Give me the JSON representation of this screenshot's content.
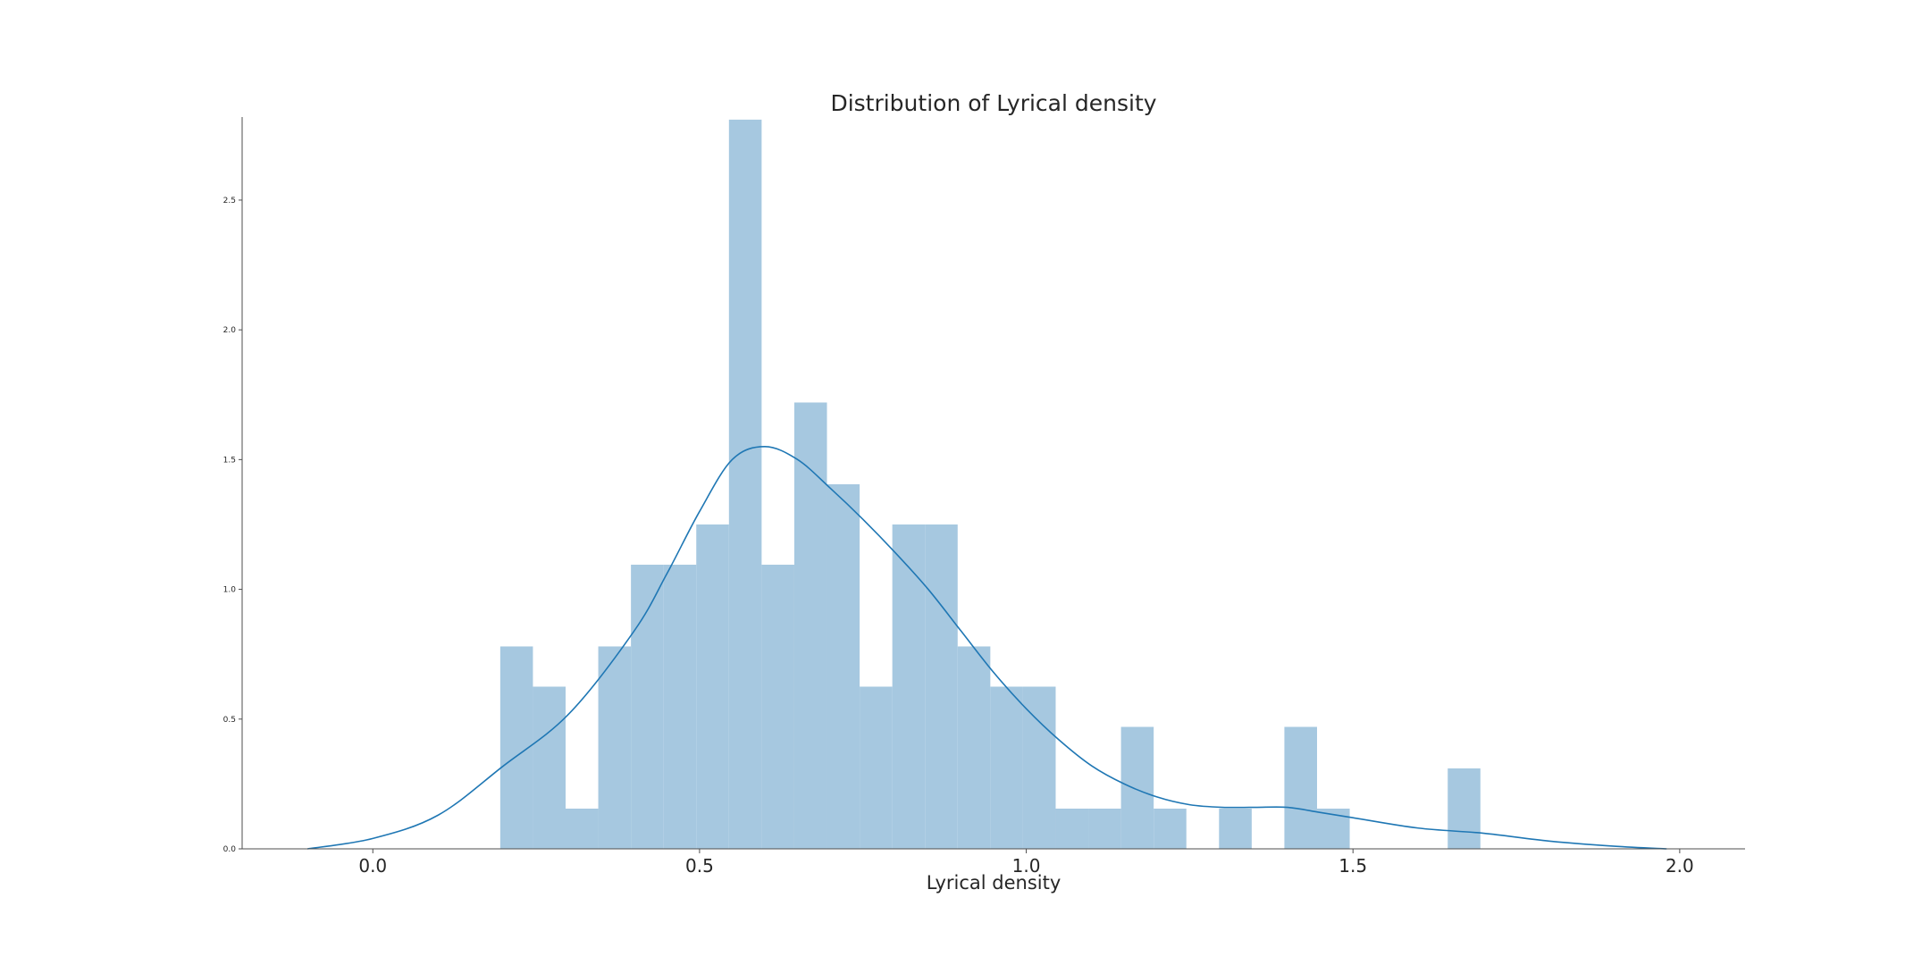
{
  "chart_data": {
    "type": "bar",
    "title": "Distribution of Lyrical density",
    "xlabel": "Lyrical density",
    "ylabel": "",
    "xlim": [
      -0.2,
      2.1
    ],
    "ylim": [
      0,
      2.82
    ],
    "xticks": [
      0.0,
      0.5,
      1.0,
      1.5,
      2.0
    ],
    "xtick_labels": [
      "0.0",
      "0.5",
      "1.0",
      "1.5",
      "2.0"
    ],
    "yticks": [
      0.0,
      0.5,
      1.0,
      1.5,
      2.0,
      2.5
    ],
    "ytick_labels": [
      "0.0",
      "0.5",
      "1.0",
      "1.5",
      "2.0",
      "2.5"
    ],
    "grid": false,
    "bar_color": "#a6c8e0",
    "line_color": "#1f77b4",
    "histogram": {
      "bin_edges": [
        0.195,
        0.245,
        0.295,
        0.345,
        0.395,
        0.445,
        0.495,
        0.545,
        0.595,
        0.645,
        0.695,
        0.745,
        0.795,
        0.845,
        0.895,
        0.945,
        0.995,
        1.045,
        1.095,
        1.145,
        1.195,
        1.245,
        1.295,
        1.345,
        1.395,
        1.445,
        1.495,
        1.545,
        1.595,
        1.645,
        1.695
      ],
      "values": [
        0.78,
        0.625,
        0.155,
        0.78,
        1.095,
        1.095,
        1.25,
        2.81,
        1.095,
        1.72,
        1.405,
        0.625,
        1.25,
        1.25,
        0.78,
        0.625,
        0.625,
        0.155,
        0.155,
        0.47,
        0.155,
        0.0,
        0.155,
        0.0,
        0.47,
        0.155,
        0.0,
        0.0,
        0.0,
        0.31
      ]
    },
    "kde": {
      "x": [
        -0.1,
        0.0,
        0.1,
        0.2,
        0.3,
        0.4,
        0.45,
        0.5,
        0.55,
        0.6,
        0.65,
        0.7,
        0.75,
        0.8,
        0.85,
        0.9,
        0.95,
        1.0,
        1.05,
        1.1,
        1.15,
        1.2,
        1.25,
        1.3,
        1.35,
        1.4,
        1.45,
        1.5,
        1.6,
        1.7,
        1.8,
        1.9,
        1.98
      ],
      "y": [
        0.0,
        0.04,
        0.13,
        0.32,
        0.52,
        0.84,
        1.06,
        1.3,
        1.5,
        1.55,
        1.5,
        1.39,
        1.27,
        1.14,
        1.0,
        0.84,
        0.68,
        0.54,
        0.42,
        0.32,
        0.25,
        0.2,
        0.17,
        0.16,
        0.16,
        0.16,
        0.14,
        0.12,
        0.08,
        0.06,
        0.03,
        0.01,
        0.0
      ]
    }
  }
}
